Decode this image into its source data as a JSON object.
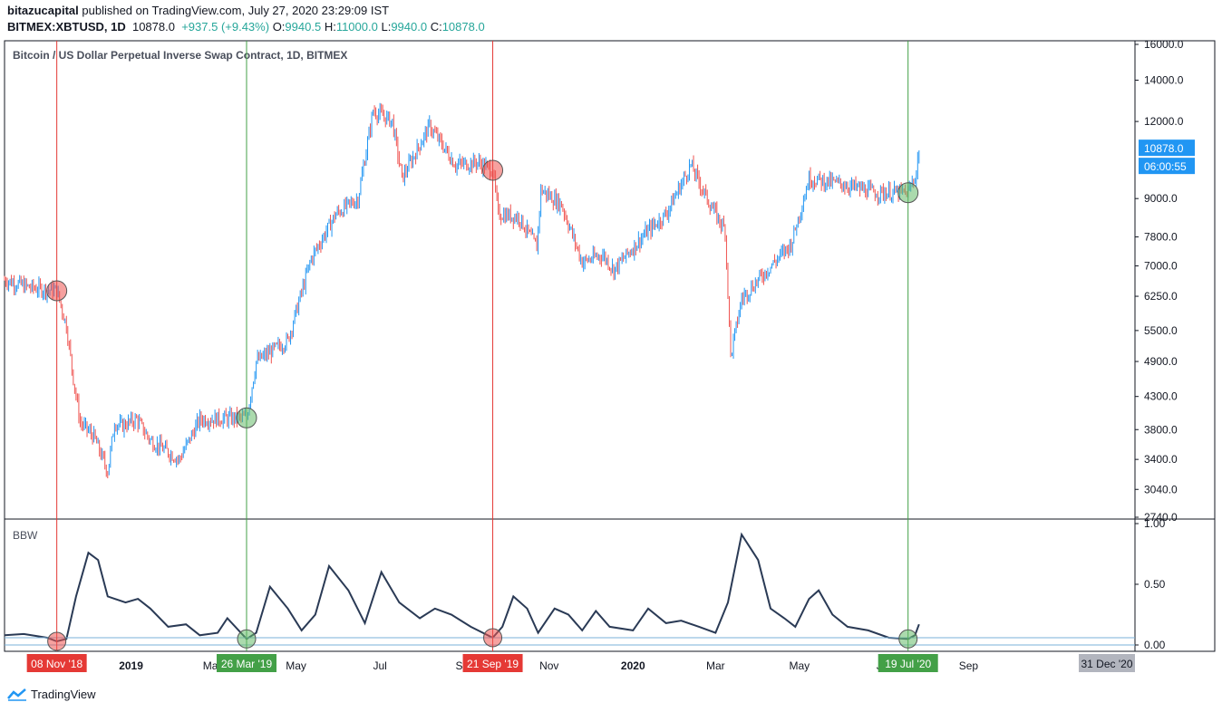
{
  "header": {
    "author": "bitazucapital",
    "published": "published on TradingView.com, July 27, 2020 23:29:09 IST",
    "symbol": "BITMEX:XBTUSD, 1D",
    "last": "10878.0",
    "change": "+937.5 (+9.43%)",
    "o_label": "O:",
    "o": "9940.5",
    "h_label": "H:",
    "h": "11000.0",
    "l_label": "L:",
    "l": "9940.0",
    "c_label": "C:",
    "c": "10878.0"
  },
  "footer": {
    "brand": "TradingView"
  },
  "colors": {
    "up": "#2196f3",
    "down": "#ef5350",
    "red_line": "#e53935",
    "green_line": "#43a047",
    "bbw_line": "#2a3a55",
    "price_tag": "#2196f3"
  },
  "chart_data": {
    "type": "candlestick",
    "title": "Bitcoin / US Dollar Perpetual Inverse Swap Contract, 1D, BITMEX",
    "scale": "log",
    "price_axis_ticks": [
      16000.0,
      14000.0,
      12000.0,
      9000.0,
      7800.0,
      7000.0,
      6250.0,
      5500.0,
      4900.0,
      4300.0,
      3800.0,
      3400.0,
      3040.0,
      2740.0
    ],
    "price_axis_labels": [
      "16000.0",
      "14000.0",
      "12000.0",
      "9000.0",
      "7800.0",
      "7000.0",
      "6250.0",
      "5500.0",
      "4900.0",
      "4300.0",
      "3800.0",
      "3400.0",
      "3040.0",
      "2740.0"
    ],
    "ylim": [
      2740,
      16000
    ],
    "last_price_label": "10878.0",
    "countdown_label": "06:00:55",
    "time_axis_labels": [
      "2019",
      "Mar",
      "May",
      "Jul",
      "Sep",
      "Nov",
      "2020",
      "Mar",
      "May",
      "Jul",
      "Sep"
    ],
    "time_axis_label_dates": [
      "2019-01-01",
      "2019-03-01",
      "2019-05-01",
      "2019-07-01",
      "2019-09-01",
      "2019-11-01",
      "2020-01-01",
      "2020-03-01",
      "2020-05-01",
      "2020-07-01",
      "2020-09-01"
    ],
    "date_range": [
      "2018-10-01",
      "2020-12-31"
    ],
    "range_end_label": "31 Dec '20",
    "price_path": [
      {
        "date": "2018-10-01",
        "price": 6650
      },
      {
        "date": "2018-10-20",
        "price": 6450
      },
      {
        "date": "2018-11-08",
        "price": 6380
      },
      {
        "date": "2018-11-15",
        "price": 5600
      },
      {
        "date": "2018-11-20",
        "price": 4600
      },
      {
        "date": "2018-11-25",
        "price": 3900
      },
      {
        "date": "2018-12-05",
        "price": 3700
      },
      {
        "date": "2018-12-15",
        "price": 3250
      },
      {
        "date": "2018-12-20",
        "price": 3900
      },
      {
        "date": "2018-12-25",
        "price": 3850
      },
      {
        "date": "2019-01-05",
        "price": 3950
      },
      {
        "date": "2019-01-15",
        "price": 3650
      },
      {
        "date": "2019-02-05",
        "price": 3400
      },
      {
        "date": "2019-02-20",
        "price": 3950
      },
      {
        "date": "2019-03-26",
        "price": 3970
      },
      {
        "date": "2019-04-02",
        "price": 4900
      },
      {
        "date": "2019-04-25",
        "price": 5300
      },
      {
        "date": "2019-05-12",
        "price": 7200
      },
      {
        "date": "2019-05-30",
        "price": 8500
      },
      {
        "date": "2019-06-15",
        "price": 9000
      },
      {
        "date": "2019-06-26",
        "price": 12500
      },
      {
        "date": "2019-07-10",
        "price": 12000
      },
      {
        "date": "2019-07-17",
        "price": 9700
      },
      {
        "date": "2019-08-06",
        "price": 11800
      },
      {
        "date": "2019-08-25",
        "price": 10200
      },
      {
        "date": "2019-09-10",
        "price": 10300
      },
      {
        "date": "2019-09-21",
        "price": 10000
      },
      {
        "date": "2019-09-25",
        "price": 8500
      },
      {
        "date": "2019-10-10",
        "price": 8400
      },
      {
        "date": "2019-10-23",
        "price": 7500
      },
      {
        "date": "2019-10-26",
        "price": 9300
      },
      {
        "date": "2019-11-10",
        "price": 8800
      },
      {
        "date": "2019-11-25",
        "price": 7100
      },
      {
        "date": "2019-12-10",
        "price": 7300
      },
      {
        "date": "2019-12-18",
        "price": 6900
      },
      {
        "date": "2020-01-10",
        "price": 7900
      },
      {
        "date": "2020-01-25",
        "price": 8500
      },
      {
        "date": "2020-02-12",
        "price": 10200
      },
      {
        "date": "2020-02-26",
        "price": 8800
      },
      {
        "date": "2020-03-08",
        "price": 8000
      },
      {
        "date": "2020-03-12",
        "price": 5000
      },
      {
        "date": "2020-03-20",
        "price": 6200
      },
      {
        "date": "2020-04-05",
        "price": 6800
      },
      {
        "date": "2020-04-25",
        "price": 7600
      },
      {
        "date": "2020-05-08",
        "price": 9700
      },
      {
        "date": "2020-06-01",
        "price": 9500
      },
      {
        "date": "2020-06-25",
        "price": 9200
      },
      {
        "date": "2020-07-19",
        "price": 9200
      },
      {
        "date": "2020-07-25",
        "price": 9900
      },
      {
        "date": "2020-07-27",
        "price": 10878
      }
    ],
    "indicator": {
      "name": "BBW",
      "axis_ticks": [
        1.0,
        0.5,
        0.0
      ],
      "axis_labels": [
        "1.00",
        "0.50",
        "0.00"
      ],
      "ylim": [
        0,
        1.0
      ],
      "threshold_values": [
        0.06,
        0.0
      ],
      "path": [
        {
          "date": "2018-10-01",
          "value": 0.08
        },
        {
          "date": "2018-10-15",
          "value": 0.09
        },
        {
          "date": "2018-11-01",
          "value": 0.06
        },
        {
          "date": "2018-11-08",
          "value": 0.03
        },
        {
          "date": "2018-11-15",
          "value": 0.05
        },
        {
          "date": "2018-11-22",
          "value": 0.4
        },
        {
          "date": "2018-12-01",
          "value": 0.76
        },
        {
          "date": "2018-12-08",
          "value": 0.7
        },
        {
          "date": "2018-12-15",
          "value": 0.4
        },
        {
          "date": "2018-12-28",
          "value": 0.35
        },
        {
          "date": "2019-01-06",
          "value": 0.38
        },
        {
          "date": "2019-01-15",
          "value": 0.3
        },
        {
          "date": "2019-01-28",
          "value": 0.15
        },
        {
          "date": "2019-02-10",
          "value": 0.17
        },
        {
          "date": "2019-02-20",
          "value": 0.08
        },
        {
          "date": "2019-03-05",
          "value": 0.1
        },
        {
          "date": "2019-03-12",
          "value": 0.22
        },
        {
          "date": "2019-03-26",
          "value": 0.05
        },
        {
          "date": "2019-04-02",
          "value": 0.1
        },
        {
          "date": "2019-04-12",
          "value": 0.48
        },
        {
          "date": "2019-04-25",
          "value": 0.3
        },
        {
          "date": "2019-05-05",
          "value": 0.12
        },
        {
          "date": "2019-05-15",
          "value": 0.25
        },
        {
          "date": "2019-05-25",
          "value": 0.65
        },
        {
          "date": "2019-06-08",
          "value": 0.45
        },
        {
          "date": "2019-06-20",
          "value": 0.18
        },
        {
          "date": "2019-07-02",
          "value": 0.6
        },
        {
          "date": "2019-07-15",
          "value": 0.35
        },
        {
          "date": "2019-07-30",
          "value": 0.22
        },
        {
          "date": "2019-08-10",
          "value": 0.3
        },
        {
          "date": "2019-08-22",
          "value": 0.25
        },
        {
          "date": "2019-09-05",
          "value": 0.15
        },
        {
          "date": "2019-09-21",
          "value": 0.06
        },
        {
          "date": "2019-09-28",
          "value": 0.15
        },
        {
          "date": "2019-10-06",
          "value": 0.4
        },
        {
          "date": "2019-10-16",
          "value": 0.3
        },
        {
          "date": "2019-10-24",
          "value": 0.1
        },
        {
          "date": "2019-11-05",
          "value": 0.3
        },
        {
          "date": "2019-11-15",
          "value": 0.25
        },
        {
          "date": "2019-11-25",
          "value": 0.12
        },
        {
          "date": "2019-12-05",
          "value": 0.28
        },
        {
          "date": "2019-12-15",
          "value": 0.15
        },
        {
          "date": "2020-01-01",
          "value": 0.12
        },
        {
          "date": "2020-01-12",
          "value": 0.3
        },
        {
          "date": "2020-01-25",
          "value": 0.18
        },
        {
          "date": "2020-02-05",
          "value": 0.2
        },
        {
          "date": "2020-02-18",
          "value": 0.15
        },
        {
          "date": "2020-03-01",
          "value": 0.1
        },
        {
          "date": "2020-03-10",
          "value": 0.35
        },
        {
          "date": "2020-03-20",
          "value": 0.91
        },
        {
          "date": "2020-04-01",
          "value": 0.7
        },
        {
          "date": "2020-04-10",
          "value": 0.3
        },
        {
          "date": "2020-04-20",
          "value": 0.22
        },
        {
          "date": "2020-04-28",
          "value": 0.15
        },
        {
          "date": "2020-05-08",
          "value": 0.38
        },
        {
          "date": "2020-05-15",
          "value": 0.45
        },
        {
          "date": "2020-05-25",
          "value": 0.25
        },
        {
          "date": "2020-06-05",
          "value": 0.15
        },
        {
          "date": "2020-06-20",
          "value": 0.12
        },
        {
          "date": "2020-07-05",
          "value": 0.06
        },
        {
          "date": "2020-07-19",
          "value": 0.05
        },
        {
          "date": "2020-07-24",
          "value": 0.08
        },
        {
          "date": "2020-07-27",
          "value": 0.17
        }
      ]
    },
    "markers": [
      {
        "date": "2018-11-08",
        "label": "08 Nov '18",
        "kind": "red",
        "price": 6380
      },
      {
        "date": "2019-03-26",
        "label": "26 Mar '19",
        "kind": "green",
        "price": 3970
      },
      {
        "date": "2019-09-21",
        "label": "21 Sep '19",
        "kind": "red",
        "price": 10000
      },
      {
        "date": "2020-07-19",
        "label": "19 Jul '20",
        "kind": "green",
        "price": 9200
      }
    ]
  }
}
